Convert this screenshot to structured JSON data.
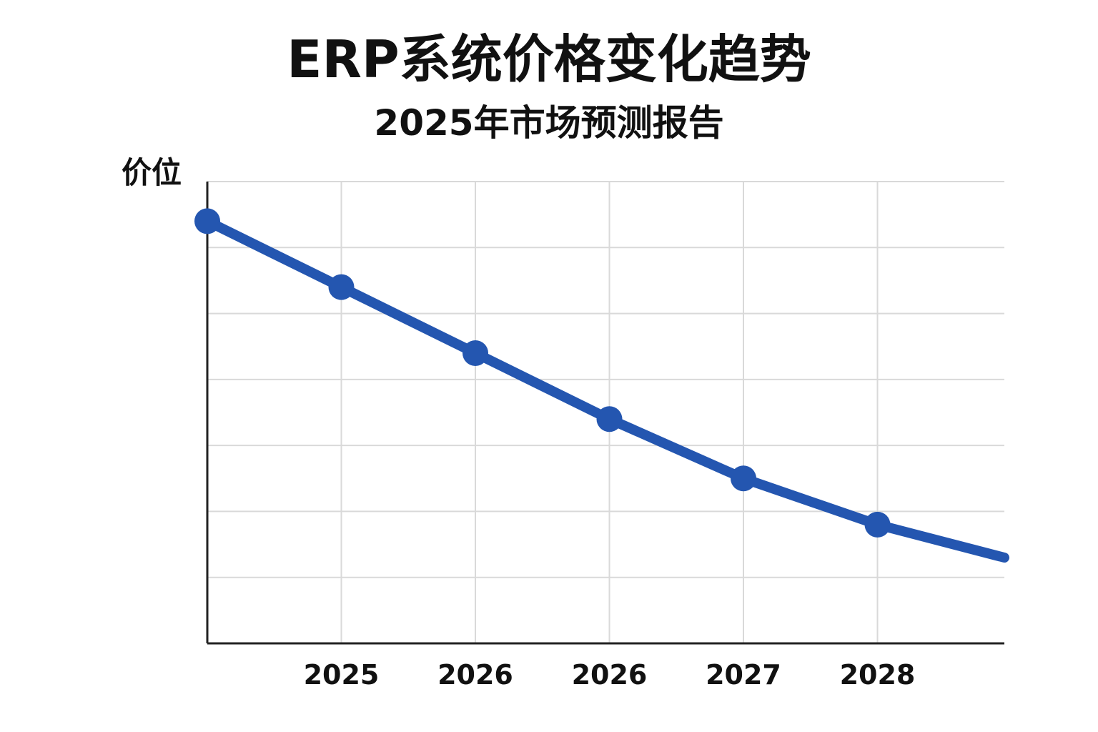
{
  "chart_data": {
    "type": "line",
    "title": "ERP系统价格变化趋势",
    "subtitle": "2025年市场预测报告",
    "ylabel": "价位",
    "xlabel": "",
    "x_tick_labels": [
      "2025",
      "2026",
      "2026",
      "2027",
      "2028"
    ],
    "ylim": [
      0,
      7
    ],
    "grid": true,
    "legend": "none",
    "series": [
      {
        "color": "#2456b0",
        "values": [
          6.4,
          5.4,
          4.4,
          3.4,
          2.5,
          1.8,
          1.3
        ]
      }
    ],
    "markers_on_points": 6
  }
}
